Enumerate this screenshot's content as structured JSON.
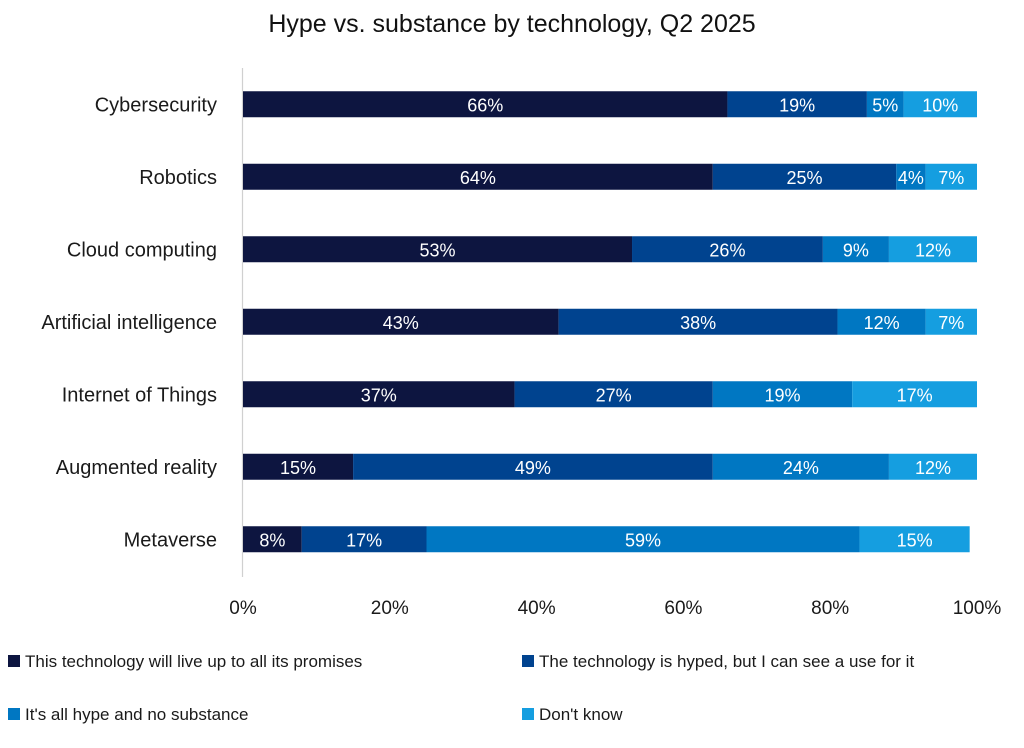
{
  "chart_data": {
    "type": "bar",
    "orientation": "horizontal",
    "stacked": "percent",
    "title": "Hype vs. substance by technology, Q2 2025",
    "xlabel": "",
    "ylabel": "",
    "xlim": [
      0,
      100
    ],
    "x_ticks": [
      "0%",
      "20%",
      "40%",
      "60%",
      "80%",
      "100%"
    ],
    "grid": false,
    "legend_position": "bottom",
    "categories": [
      "Cybersecurity",
      "Robotics",
      "Cloud computing",
      "Artificial intelligence",
      "Internet of Things",
      "Augmented reality",
      "Metaverse"
    ],
    "series": [
      {
        "name": "This technology will live up to all its promises",
        "color": "#0d1540",
        "values": [
          66,
          64,
          53,
          43,
          37,
          15,
          8
        ]
      },
      {
        "name": "The technology is hyped, but I can see a use for it",
        "color": "#00438f",
        "values": [
          19,
          25,
          26,
          38,
          27,
          49,
          17
        ]
      },
      {
        "name": "It's all hype and no substance",
        "color": "#0077c2",
        "values": [
          5,
          4,
          9,
          12,
          19,
          24,
          59
        ]
      },
      {
        "name": "Don't know",
        "color": "#159ee0",
        "values": [
          10,
          7,
          12,
          7,
          17,
          12,
          15
        ]
      }
    ],
    "data_label_suffix": "%"
  }
}
